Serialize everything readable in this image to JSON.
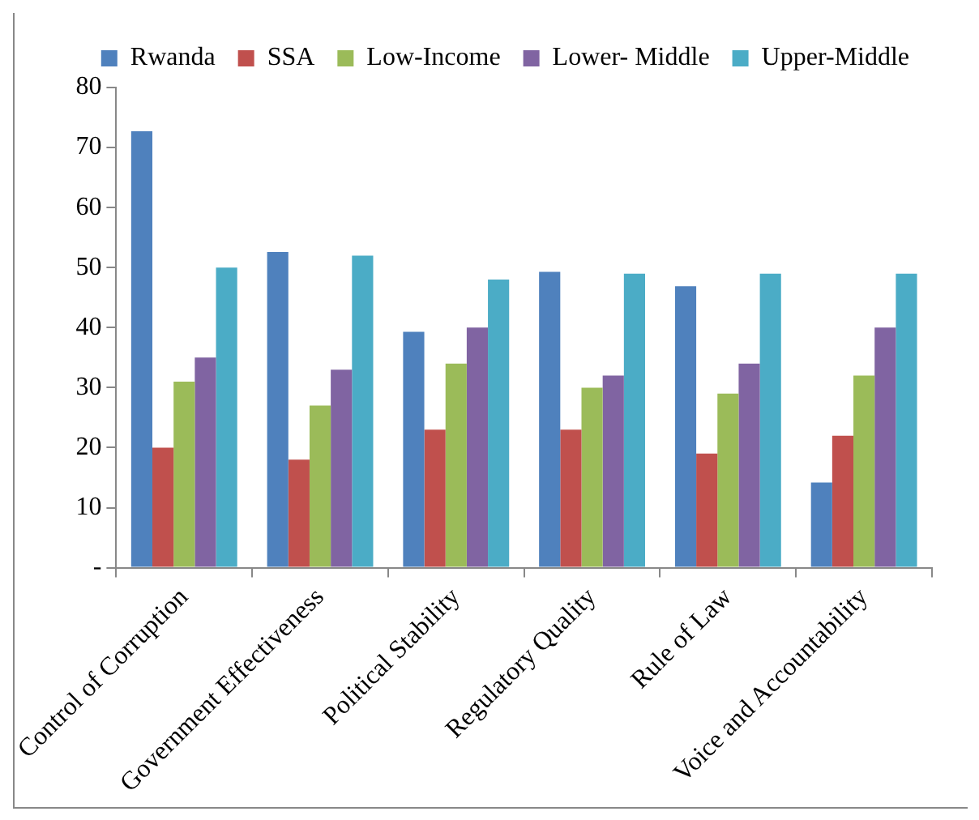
{
  "chart_data": {
    "type": "bar",
    "categories": [
      "Control of Corruption",
      "Government Effectiveness",
      "Political Stability",
      "Regulatory Quality",
      "Rule of Law",
      "Voice and Accountability"
    ],
    "series": [
      {
        "name": "Rwanda",
        "color": "#4f81bd",
        "values": [
          72.7,
          52.6,
          39.3,
          49.3,
          46.9,
          14.2
        ]
      },
      {
        "name": "SSA",
        "color": "#c0504d",
        "values": [
          20,
          18,
          23,
          23,
          19,
          22
        ]
      },
      {
        "name": "Low-Income",
        "color": "#9bbb59",
        "values": [
          31,
          27,
          34,
          30,
          29,
          32
        ]
      },
      {
        "name": "Lower- Middle",
        "color": "#8064a2",
        "values": [
          35,
          33,
          40,
          32,
          34,
          40
        ]
      },
      {
        "name": "Upper-Middle",
        "color": "#4bacc6",
        "values": [
          50,
          52,
          48,
          49,
          49,
          49
        ]
      }
    ],
    "ylim": [
      0,
      80
    ],
    "yticks": [
      {
        "value": 0,
        "label": "-"
      },
      10,
      20,
      30,
      40,
      50,
      60,
      70,
      80
    ],
    "grid": false,
    "legend": "top right"
  }
}
